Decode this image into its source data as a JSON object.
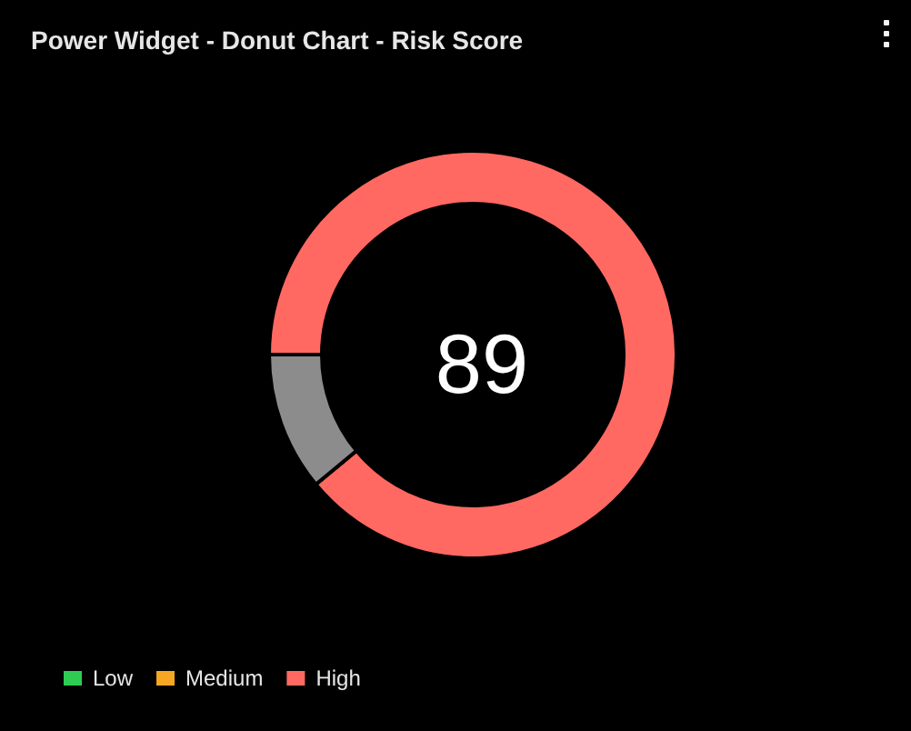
{
  "chart_data": {
    "type": "donut",
    "title": "Power Widget - Donut Chart - Risk Score",
    "categories": [
      "Low",
      "Medium",
      "High",
      null
    ],
    "values": [
      0,
      0,
      89,
      11
    ],
    "colors": [
      "#2ecc52",
      "#f5a623",
      "#ff6961",
      "#8c8c8c"
    ],
    "legend": "bottom left",
    "annotations": [
      "89"
    ]
  }
}
